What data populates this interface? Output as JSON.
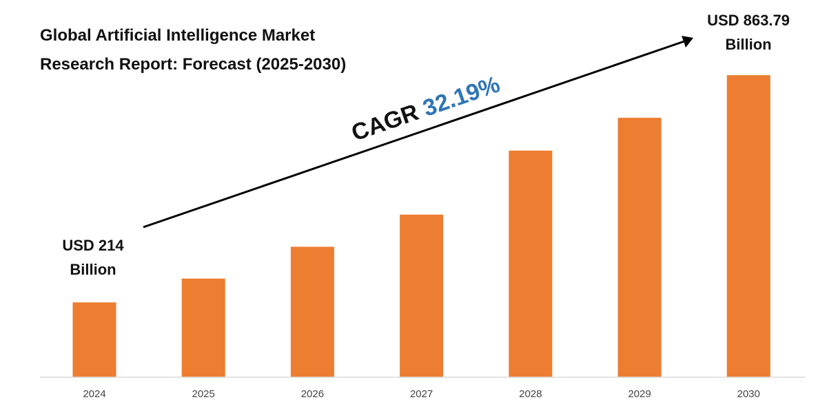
{
  "chart_data": {
    "type": "bar",
    "title_lines": [
      "Global Artificial Intelligence Market",
      "Research Report: Forecast (2025-2030)"
    ],
    "categories": [
      "2024",
      "2025",
      "2026",
      "2027",
      "2028",
      "2029",
      "2030"
    ],
    "values": [
      214,
      282,
      373,
      465,
      648,
      742,
      863.79
    ],
    "ylim": [
      0,
      1000
    ],
    "grid": false,
    "legend": "none",
    "bar_color": "#ED7D31",
    "axis_color": "#D9D9D9",
    "annotations": {
      "start": {
        "line1": "USD 214",
        "line2": "Billion"
      },
      "end": {
        "line1": "USD 863.79",
        "line2": "Billion"
      },
      "cagr": {
        "prefix": "CAGR ",
        "value": "32.19%",
        "value_color": "#2E75B6"
      }
    }
  }
}
